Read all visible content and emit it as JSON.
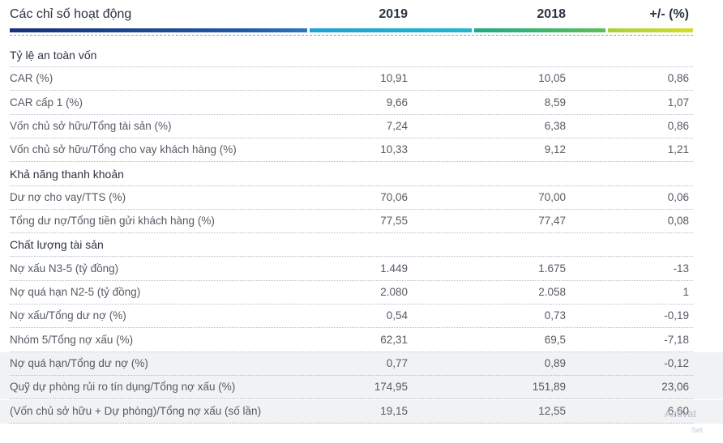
{
  "header": {
    "label": "Các chỉ số hoạt động",
    "col_2019": "2019",
    "col_2018": "2018",
    "col_diff": "+/- (%)"
  },
  "rows": [
    {
      "type": "section",
      "label": "Tỷ lệ an toàn vốn"
    },
    {
      "type": "data",
      "label": "CAR (%)",
      "v2019": "10,91",
      "v2018": "10,05",
      "diff": "0,86"
    },
    {
      "type": "data",
      "label": "CAR cấp 1 (%)",
      "v2019": "9,66",
      "v2018": "8,59",
      "diff": "1,07"
    },
    {
      "type": "data",
      "label": "Vốn chủ sở hữu/Tổng tài sản (%)",
      "v2019": "7,24",
      "v2018": "6,38",
      "diff": "0,86"
    },
    {
      "type": "data",
      "label": "Vốn chủ sở hữu/Tổng cho vay khách hàng (%)",
      "v2019": "10,33",
      "v2018": "9,12",
      "diff": "1,21"
    },
    {
      "type": "section",
      "label": "Khả năng thanh khoản"
    },
    {
      "type": "data",
      "label": "Dư nợ cho vay/TTS (%)",
      "v2019": "70,06",
      "v2018": "70,00",
      "diff": "0,06"
    },
    {
      "type": "data",
      "label": "Tổng dư nợ/Tổng tiền gửi khách hàng  (%)",
      "v2019": "77,55",
      "v2018": "77,47",
      "diff": "0,08"
    },
    {
      "type": "section",
      "label": "Chất lượng tài sản"
    },
    {
      "type": "data",
      "label": "Nợ xấu N3-5 (tỷ đồng)",
      "v2019": "1.449",
      "v2018": "1.675",
      "diff": "-13"
    },
    {
      "type": "data",
      "label": "Nợ quá hạn N2-5 (tỷ đồng)",
      "v2019": "2.080",
      "v2018": "2.058",
      "diff": "1"
    },
    {
      "type": "data",
      "label": "Nợ xấu/Tổng dư nợ (%)",
      "v2019": "0,54",
      "v2018": "0,73",
      "diff": "-0,19"
    },
    {
      "type": "data",
      "label": "Nhóm 5/Tổng nợ xấu (%)",
      "v2019": "62,31",
      "v2018": "69,5",
      "diff": "-7,18"
    },
    {
      "type": "data",
      "label": "Nợ quá hạn/Tổng dư nợ (%)",
      "v2019": "0,77",
      "v2018": "0,89",
      "diff": "-0,12"
    },
    {
      "type": "data",
      "label": "Quỹ dự phòng rủi ro tín dụng/Tổng nợ xấu (%)",
      "v2019": "174,95",
      "v2018": "151,89",
      "diff": "23,06"
    },
    {
      "type": "data",
      "label": "(Vốn chủ sở hữu + Dự phòng)/Tổng nợ xấu (số lần)",
      "v2019": "19,15",
      "v2018": "12,55",
      "diff": "6,60"
    }
  ],
  "watermark": {
    "line1": "Activat",
    "line2": "Set"
  }
}
